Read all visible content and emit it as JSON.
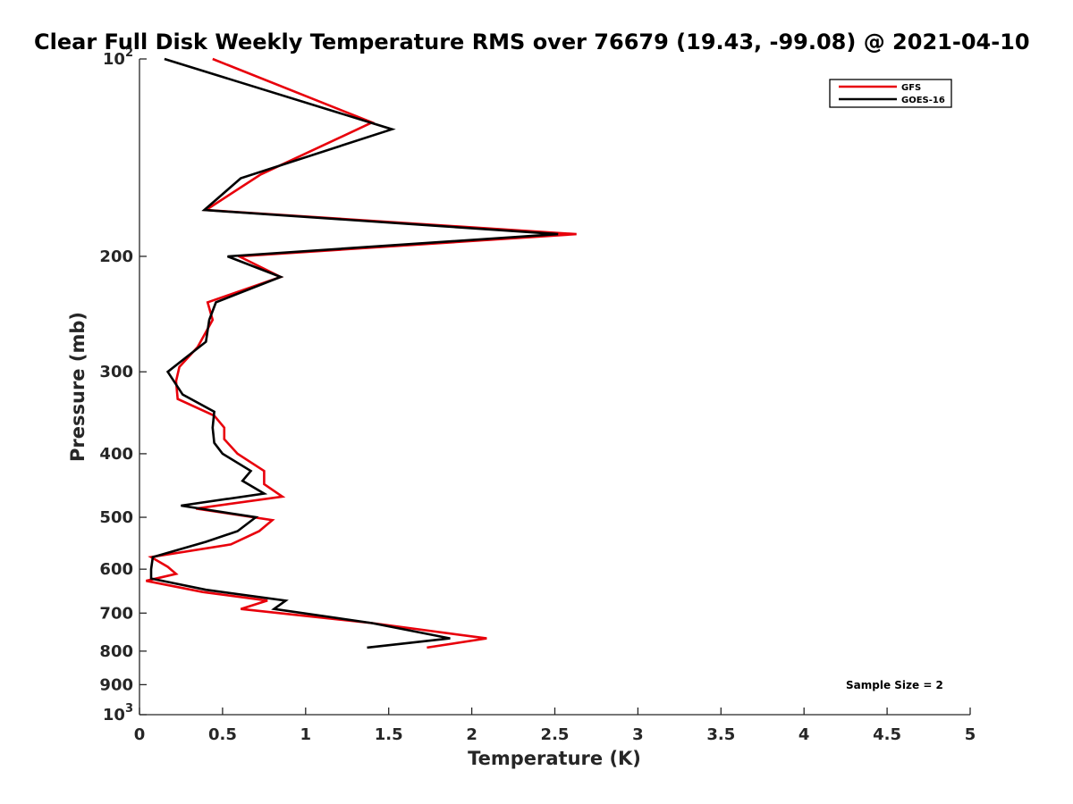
{
  "chart_data": {
    "type": "line",
    "title": "Clear Full Disk Weekly Temperature RMS over 76679 (19.43, -99.08) @ 2021-04-10",
    "xlabel": "Temperature (K)",
    "ylabel": "Pressure (mb)",
    "xlim": [
      0,
      5
    ],
    "ylim": [
      100,
      1000
    ],
    "y_scale": "log",
    "y_reversed": true,
    "grid": false,
    "legend_position": "top-right",
    "x_ticks": [
      {
        "value": 0,
        "label": "0"
      },
      {
        "value": 0.5,
        "label": "0.5"
      },
      {
        "value": 1,
        "label": "1"
      },
      {
        "value": 1.5,
        "label": "1.5"
      },
      {
        "value": 2,
        "label": "2"
      },
      {
        "value": 2.5,
        "label": "2.5"
      },
      {
        "value": 3,
        "label": "3"
      },
      {
        "value": 3.5,
        "label": "3.5"
      },
      {
        "value": 4,
        "label": "4"
      },
      {
        "value": 4.5,
        "label": "4.5"
      },
      {
        "value": 5,
        "label": "5"
      }
    ],
    "y_ticks": [
      {
        "value": 100,
        "base": "10",
        "exp": "2"
      },
      {
        "value": 200,
        "label": "200"
      },
      {
        "value": 300,
        "label": "300"
      },
      {
        "value": 400,
        "label": "400"
      },
      {
        "value": 500,
        "label": "500"
      },
      {
        "value": 600,
        "label": "600"
      },
      {
        "value": 700,
        "label": "700"
      },
      {
        "value": 800,
        "label": "800"
      },
      {
        "value": 900,
        "label": "900"
      },
      {
        "value": 1000,
        "base": "10",
        "exp": "3"
      }
    ],
    "series": [
      {
        "name": "GFS",
        "color": "#e8000b",
        "points": [
          [
            0.44,
            100
          ],
          [
            1.4,
            125
          ],
          [
            0.73,
            150
          ],
          [
            0.4,
            170
          ],
          [
            2.63,
            185
          ],
          [
            0.6,
            200
          ],
          [
            0.85,
            215
          ],
          [
            0.41,
            235
          ],
          [
            0.44,
            250
          ],
          [
            0.35,
            275
          ],
          [
            0.24,
            295
          ],
          [
            0.22,
            310
          ],
          [
            0.23,
            330
          ],
          [
            0.45,
            350
          ],
          [
            0.51,
            365
          ],
          [
            0.51,
            380
          ],
          [
            0.59,
            400
          ],
          [
            0.75,
            425
          ],
          [
            0.75,
            445
          ],
          [
            0.86,
            465
          ],
          [
            0.34,
            485
          ],
          [
            0.8,
            505
          ],
          [
            0.72,
            525
          ],
          [
            0.55,
            550
          ],
          [
            0.07,
            575
          ],
          [
            0.17,
            595
          ],
          [
            0.22,
            610
          ],
          [
            0.04,
            625
          ],
          [
            0.38,
            650
          ],
          [
            0.77,
            670
          ],
          [
            0.61,
            690
          ],
          [
            1.4,
            725
          ],
          [
            2.09,
            765
          ],
          [
            1.73,
            790
          ]
        ]
      },
      {
        "name": "GOES-16",
        "color": "#000000",
        "points": [
          [
            0.15,
            100
          ],
          [
            1.52,
            128
          ],
          [
            0.61,
            152
          ],
          [
            0.39,
            170
          ],
          [
            2.52,
            185
          ],
          [
            0.53,
            200
          ],
          [
            0.85,
            215
          ],
          [
            0.46,
            235
          ],
          [
            0.42,
            250
          ],
          [
            0.4,
            270
          ],
          [
            0.17,
            300
          ],
          [
            0.26,
            325
          ],
          [
            0.45,
            345
          ],
          [
            0.44,
            365
          ],
          [
            0.45,
            385
          ],
          [
            0.5,
            400
          ],
          [
            0.67,
            425
          ],
          [
            0.62,
            440
          ],
          [
            0.75,
            460
          ],
          [
            0.25,
            480
          ],
          [
            0.7,
            500
          ],
          [
            0.59,
            525
          ],
          [
            0.4,
            545
          ],
          [
            0.08,
            575
          ],
          [
            0.07,
            600
          ],
          [
            0.07,
            620
          ],
          [
            0.4,
            645
          ],
          [
            0.88,
            670
          ],
          [
            0.81,
            690
          ],
          [
            1.4,
            725
          ],
          [
            1.87,
            765
          ],
          [
            1.37,
            790
          ]
        ]
      }
    ],
    "annotations": [
      "Sample Size = 2"
    ]
  }
}
